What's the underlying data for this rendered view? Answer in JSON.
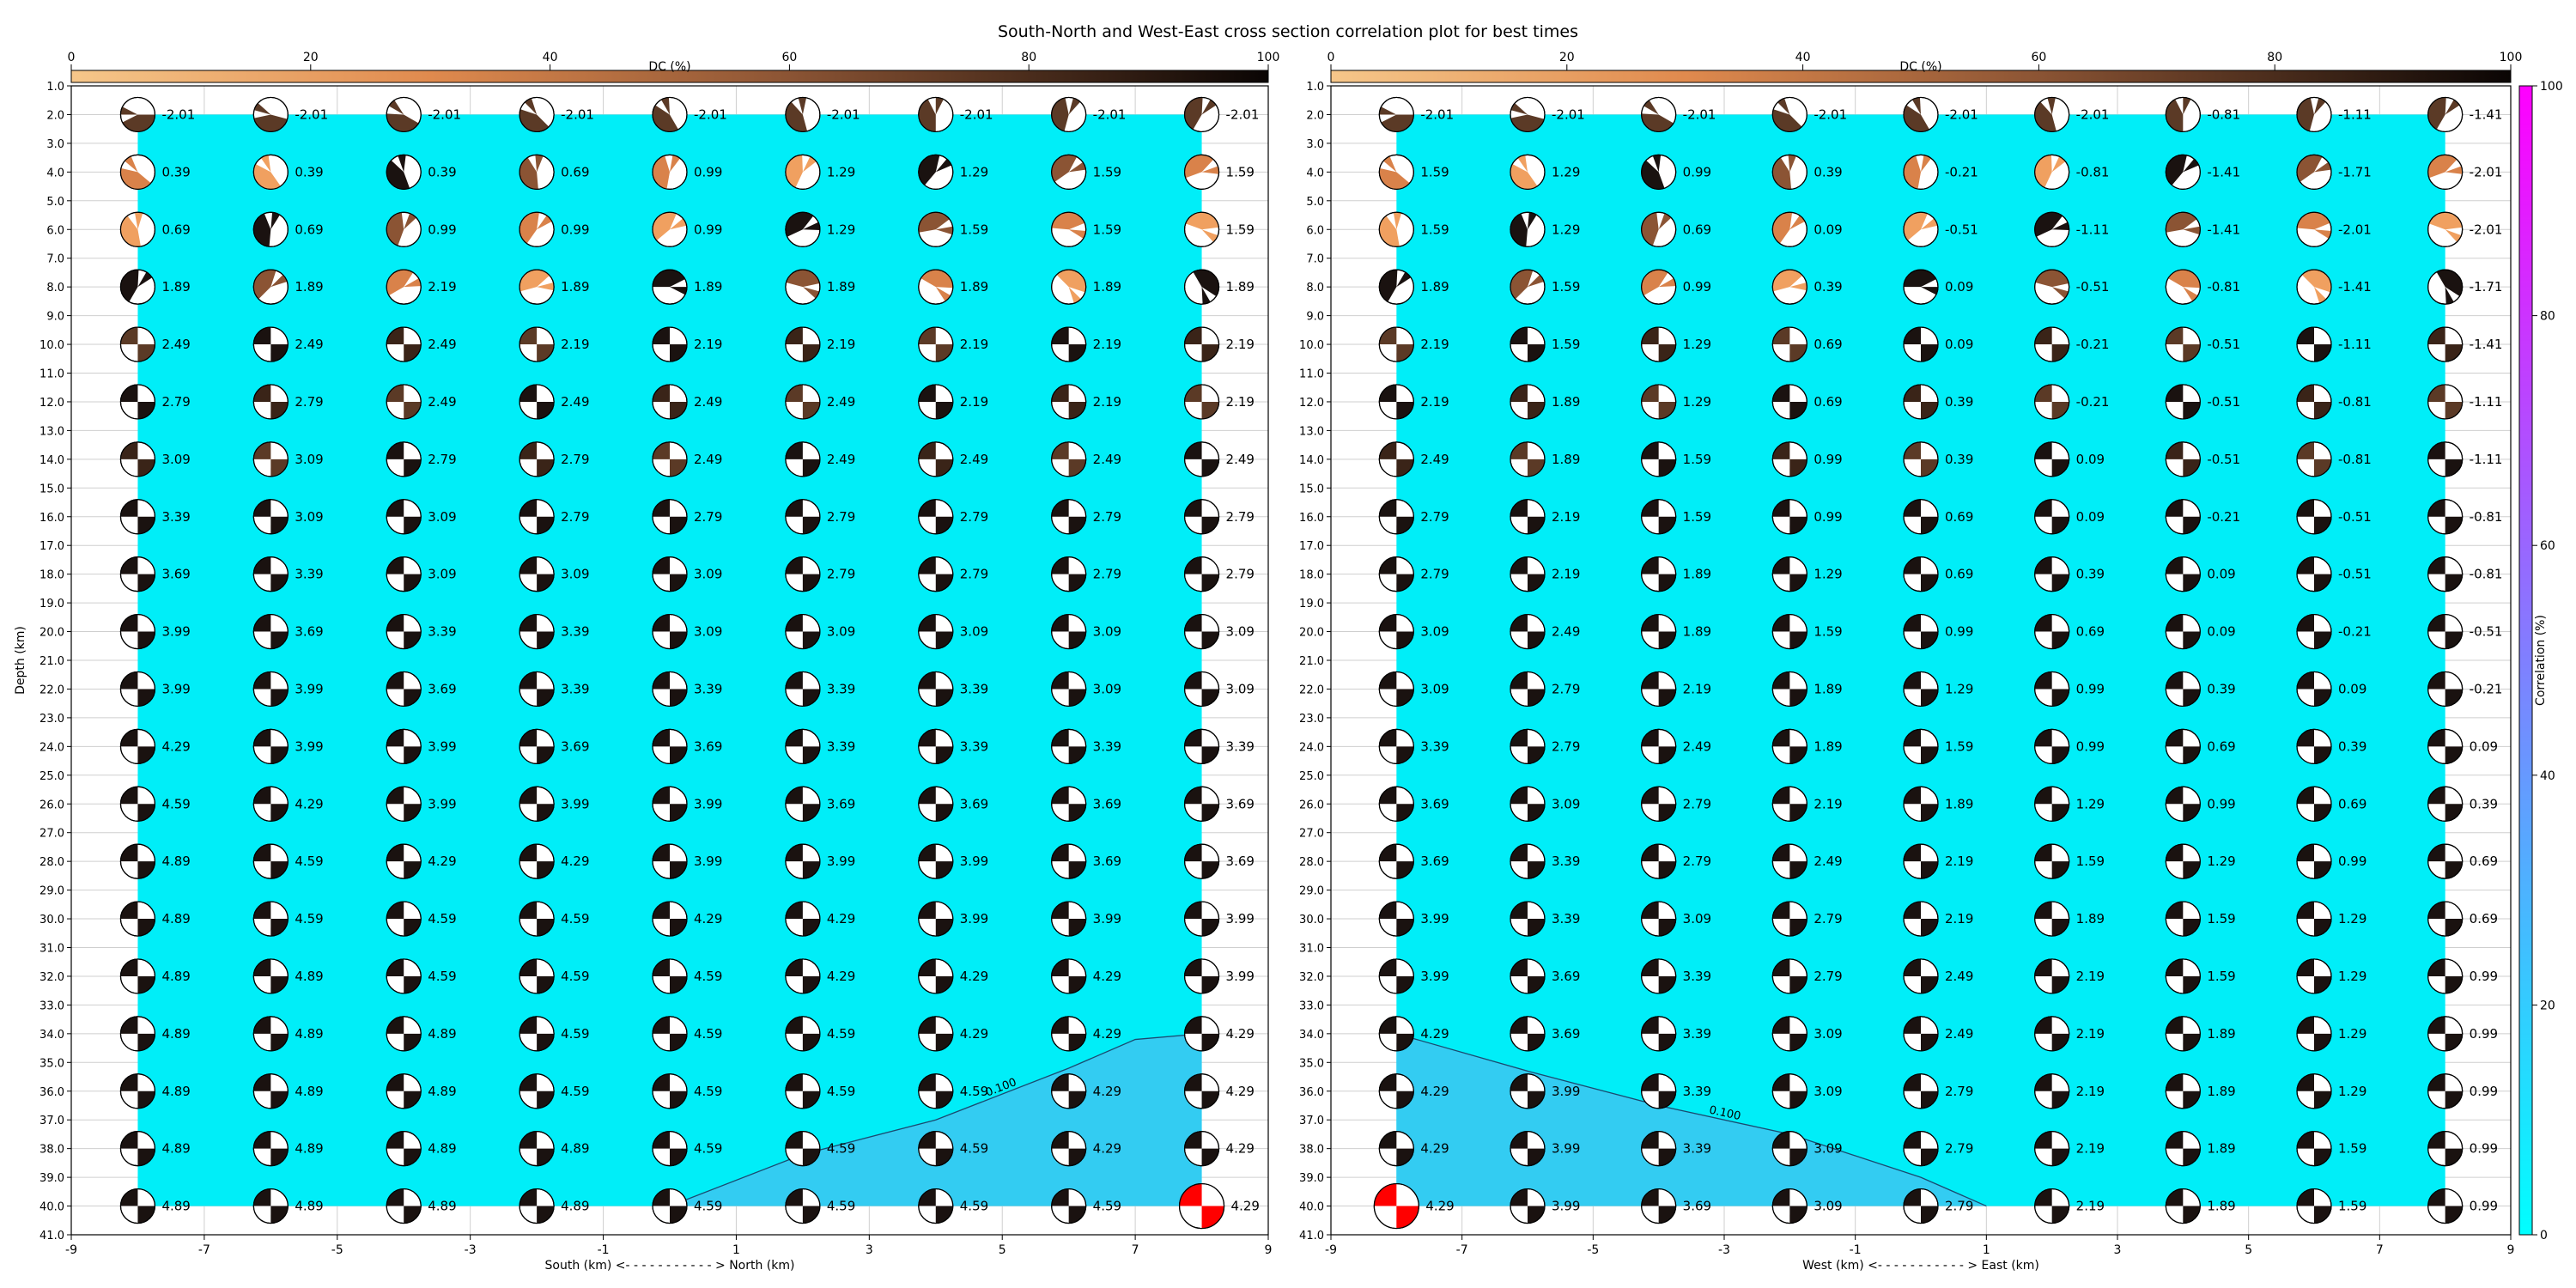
{
  "title": "South-North and West-East cross section correlation plot for best times",
  "dc_colorbar": {
    "label": "DC (%)",
    "ticks": [
      0,
      20,
      40,
      60,
      80,
      100
    ]
  },
  "corr_colorbar": {
    "label": "Correlation (%)",
    "ticks": [
      0,
      20,
      40,
      60,
      80,
      100
    ]
  },
  "colors": {
    "fill": "#00eef8",
    "fill_high": "#33ccf2",
    "contour": "#1a4a70",
    "best": "#ff0000"
  },
  "chart_data": [
    {
      "type": "scatter",
      "subtype": "beachball-grid",
      "xlabel": "South (km) <- - - - - - - - - - - > North (km)",
      "ylabel": "Depth (km)",
      "xlim": [
        -9,
        9
      ],
      "ylim": [
        41,
        1
      ],
      "x": [
        -8,
        -6,
        -4,
        -2,
        0,
        2,
        4,
        6,
        8
      ],
      "depths": [
        2,
        4,
        6,
        8,
        10,
        12,
        14,
        16,
        18,
        20,
        22,
        24,
        26,
        28,
        30,
        32,
        34,
        36,
        38,
        40
      ],
      "labels": [
        [
          "-2.01",
          "-2.01",
          "-2.01",
          "-2.01",
          "-2.01",
          "-2.01",
          "-2.01",
          "-2.01",
          "-2.01"
        ],
        [
          "0.39",
          "0.39",
          "0.39",
          "0.69",
          "0.99",
          "1.29",
          "1.29",
          "1.59",
          "1.59"
        ],
        [
          "0.69",
          "0.69",
          "0.99",
          "0.99",
          "0.99",
          "1.29",
          "1.59",
          "1.59",
          "1.59"
        ],
        [
          "1.89",
          "1.89",
          "2.19",
          "1.89",
          "1.89",
          "1.89",
          "1.89",
          "1.89",
          "1.89"
        ],
        [
          "2.49",
          "2.49",
          "2.49",
          "2.19",
          "2.19",
          "2.19",
          "2.19",
          "2.19",
          "2.19"
        ],
        [
          "2.79",
          "2.79",
          "2.49",
          "2.49",
          "2.49",
          "2.49",
          "2.19",
          "2.19",
          "2.19"
        ],
        [
          "3.09",
          "3.09",
          "2.79",
          "2.79",
          "2.49",
          "2.49",
          "2.49",
          "2.49",
          "2.49"
        ],
        [
          "3.39",
          "3.09",
          "3.09",
          "2.79",
          "2.79",
          "2.79",
          "2.79",
          "2.79",
          "2.79"
        ],
        [
          "3.69",
          "3.39",
          "3.09",
          "3.09",
          "3.09",
          "2.79",
          "2.79",
          "2.79",
          "2.79"
        ],
        [
          "3.99",
          "3.69",
          "3.39",
          "3.39",
          "3.09",
          "3.09",
          "3.09",
          "3.09",
          "3.09"
        ],
        [
          "3.99",
          "3.99",
          "3.69",
          "3.39",
          "3.39",
          "3.39",
          "3.39",
          "3.09",
          "3.09"
        ],
        [
          "4.29",
          "3.99",
          "3.99",
          "3.69",
          "3.69",
          "3.39",
          "3.39",
          "3.39",
          "3.39"
        ],
        [
          "4.59",
          "4.29",
          "3.99",
          "3.99",
          "3.99",
          "3.69",
          "3.69",
          "3.69",
          "3.69"
        ],
        [
          "4.89",
          "4.59",
          "4.29",
          "4.29",
          "3.99",
          "3.99",
          "3.99",
          "3.69",
          "3.69"
        ],
        [
          "4.89",
          "4.59",
          "4.59",
          "4.59",
          "4.29",
          "4.29",
          "3.99",
          "3.99",
          "3.99"
        ],
        [
          "4.89",
          "4.89",
          "4.59",
          "4.59",
          "4.59",
          "4.29",
          "4.29",
          "4.29",
          "3.99"
        ],
        [
          "4.89",
          "4.89",
          "4.89",
          "4.59",
          "4.59",
          "4.59",
          "4.29",
          "4.29",
          "4.29"
        ],
        [
          "4.89",
          "4.89",
          "4.89",
          "4.59",
          "4.59",
          "4.59",
          "4.59",
          "4.29",
          "4.29"
        ],
        [
          "4.89",
          "4.89",
          "4.89",
          "4.89",
          "4.59",
          "4.59",
          "4.59",
          "4.29",
          "4.29"
        ],
        [
          "4.89",
          "4.89",
          "4.89",
          "4.89",
          "4.59",
          "4.59",
          "4.59",
          "4.59",
          "4.29"
        ]
      ],
      "best": {
        "x": 8,
        "depth": 40
      },
      "fill_extent": {
        "x": [
          -8,
          8
        ],
        "depth": [
          2,
          40
        ]
      },
      "contour": {
        "label": "0.100",
        "points": [
          [
            0,
            40
          ],
          [
            2,
            38.2
          ],
          [
            4,
            37
          ],
          [
            6,
            35.2
          ],
          [
            7,
            34.2
          ],
          [
            8,
            34
          ]
        ]
      }
    },
    {
      "type": "scatter",
      "subtype": "beachball-grid",
      "xlabel": "West (km) <- - - - - - - - - - - > East (km)",
      "ylabel": "",
      "xlim": [
        -9,
        9
      ],
      "ylim": [
        41,
        1
      ],
      "x": [
        -8,
        -6,
        -4,
        -2,
        0,
        2,
        4,
        6,
        8
      ],
      "depths": [
        2,
        4,
        6,
        8,
        10,
        12,
        14,
        16,
        18,
        20,
        22,
        24,
        26,
        28,
        30,
        32,
        34,
        36,
        38,
        40
      ],
      "labels": [
        [
          "-2.01",
          "-2.01",
          "-2.01",
          "-2.01",
          "-2.01",
          "-2.01",
          "-0.81",
          "-1.11",
          "-1.41"
        ],
        [
          "1.59",
          "1.29",
          "0.99",
          "0.39",
          "-0.21",
          "-0.81",
          "-1.41",
          "-1.71",
          "-2.01"
        ],
        [
          "1.59",
          "1.29",
          "0.69",
          "0.09",
          "-0.51",
          "-1.11",
          "-1.41",
          "-2.01",
          "-2.01"
        ],
        [
          "1.89",
          "1.59",
          "0.99",
          "0.39",
          "0.09",
          "-0.51",
          "-0.81",
          "-1.41",
          "-1.71"
        ],
        [
          "2.19",
          "1.59",
          "1.29",
          "0.69",
          "0.09",
          "-0.21",
          "-0.51",
          "-1.11",
          "-1.41"
        ],
        [
          "2.19",
          "1.89",
          "1.29",
          "0.69",
          "0.39",
          "-0.21",
          "-0.51",
          "-0.81",
          "-1.11"
        ],
        [
          "2.49",
          "1.89",
          "1.59",
          "0.99",
          "0.39",
          "0.09",
          "-0.51",
          "-0.81",
          "-1.11"
        ],
        [
          "2.79",
          "2.19",
          "1.59",
          "0.99",
          "0.69",
          "0.09",
          "-0.21",
          "-0.51",
          "-0.81"
        ],
        [
          "2.79",
          "2.19",
          "1.89",
          "1.29",
          "0.69",
          "0.39",
          "0.09",
          "-0.51",
          "-0.81"
        ],
        [
          "3.09",
          "2.49",
          "1.89",
          "1.59",
          "0.99",
          "0.69",
          "0.09",
          "-0.21",
          "-0.51"
        ],
        [
          "3.09",
          "2.79",
          "2.19",
          "1.89",
          "1.29",
          "0.99",
          "0.39",
          "0.09",
          "-0.21"
        ],
        [
          "3.39",
          "2.79",
          "2.49",
          "1.89",
          "1.59",
          "0.99",
          "0.69",
          "0.39",
          "0.09"
        ],
        [
          "3.69",
          "3.09",
          "2.79",
          "2.19",
          "1.89",
          "1.29",
          "0.99",
          "0.69",
          "0.39"
        ],
        [
          "3.69",
          "3.39",
          "2.79",
          "2.49",
          "2.19",
          "1.59",
          "1.29",
          "0.99",
          "0.69"
        ],
        [
          "3.99",
          "3.39",
          "3.09",
          "2.79",
          "2.19",
          "1.89",
          "1.59",
          "1.29",
          "0.69"
        ],
        [
          "3.99",
          "3.69",
          "3.39",
          "2.79",
          "2.49",
          "2.19",
          "1.59",
          "1.29",
          "0.99"
        ],
        [
          "4.29",
          "3.69",
          "3.39",
          "3.09",
          "2.49",
          "2.19",
          "1.89",
          "1.29",
          "0.99"
        ],
        [
          "4.29",
          "3.99",
          "3.39",
          "3.09",
          "2.79",
          "2.19",
          "1.89",
          "1.29",
          "0.99"
        ],
        [
          "4.29",
          "3.99",
          "3.39",
          "3.09",
          "2.79",
          "2.19",
          "1.89",
          "1.59",
          "0.99"
        ],
        [
          "4.29",
          "3.99",
          "3.69",
          "3.09",
          "2.79",
          "2.19",
          "1.89",
          "1.59",
          "0.99"
        ]
      ],
      "best": {
        "x": -8,
        "depth": 40
      },
      "fill_extent": {
        "x": [
          -8,
          8
        ],
        "depth": [
          2,
          40
        ]
      },
      "contour": {
        "label": "0.100",
        "points": [
          [
            -8,
            34
          ],
          [
            -6,
            35.3
          ],
          [
            -4,
            36.5
          ],
          [
            -2,
            37.5
          ],
          [
            0,
            39
          ],
          [
            1,
            40
          ]
        ]
      }
    }
  ]
}
